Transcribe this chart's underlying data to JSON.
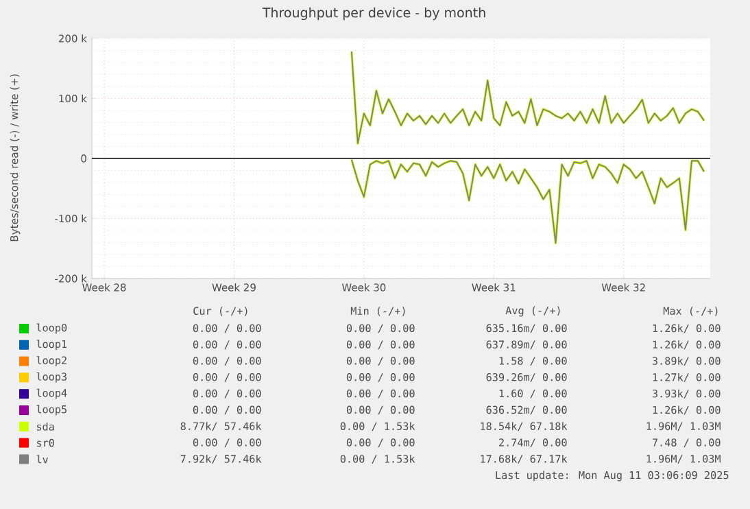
{
  "chart_data": {
    "type": "line",
    "title": "Throughput per device - by month",
    "ylabel": "Bytes/second read (-) / write (+)",
    "categories": [
      null,
      null,
      "Week 28",
      null,
      null,
      null,
      null,
      null,
      null,
      null,
      null,
      null,
      null,
      null,
      null,
      null,
      null,
      null,
      null,
      null,
      null,
      null,
      null,
      "Week 29",
      null,
      null,
      null,
      null,
      null,
      null,
      null,
      null,
      null,
      null,
      null,
      null,
      null,
      null,
      null,
      null,
      null,
      null,
      null,
      null,
      "Week 30",
      null,
      null,
      null,
      null,
      null,
      null,
      null,
      null,
      null,
      null,
      null,
      null,
      null,
      null,
      null,
      null,
      null,
      null,
      null,
      null,
      "Week 31",
      null,
      null,
      null,
      null,
      null,
      null,
      null,
      null,
      null,
      null,
      null,
      null,
      null,
      null,
      null,
      null,
      null,
      null,
      null,
      null,
      "Week 32",
      null,
      null,
      null,
      null,
      null,
      null,
      null,
      null,
      null,
      null,
      null,
      null,
      null,
      null
    ],
    "ylim": [
      -200000,
      200000
    ],
    "yticks": [
      {
        "value": -200000,
        "label": "-200 k"
      },
      {
        "value": -100000,
        "label": "-100 k"
      },
      0,
      {
        "value": 100000,
        "label": "100 k"
      },
      {
        "value": 200000,
        "label": "200 k"
      }
    ],
    "grid": true,
    "legend": "bottom",
    "marker": "none",
    "line_style": "solid",
    "ref_lines": [
      {
        "axis": "y",
        "value": 0,
        "color": "#000000"
      }
    ],
    "series": [
      {
        "name": "loop0",
        "color": "#00cc00",
        "values": [
          null,
          null,
          null,
          null,
          null,
          null,
          null,
          null,
          null,
          null,
          null,
          null,
          null,
          null,
          null,
          null,
          null,
          null,
          null,
          null,
          null,
          null,
          null,
          null,
          null,
          null,
          null,
          null,
          null,
          null,
          null,
          null,
          null,
          null,
          null,
          null,
          null,
          null,
          null,
          null,
          null,
          null,
          null,
          null,
          null,
          null,
          null,
          null,
          null,
          null,
          null,
          null,
          null,
          null,
          null,
          null,
          null,
          null,
          null,
          null,
          null,
          null,
          null,
          null,
          null,
          null,
          null,
          null,
          null,
          null,
          null,
          null,
          null,
          null,
          null,
          null,
          null,
          null,
          null,
          null,
          null,
          null,
          null,
          null,
          null,
          null,
          null,
          null,
          null,
          null,
          null,
          null,
          null,
          null,
          null,
          null,
          null,
          null,
          null,
          null,
          null
        ]
      },
      {
        "name": "loop1",
        "color": "#0066b3",
        "values": [
          null,
          null,
          null,
          null,
          null,
          null,
          null,
          null,
          null,
          null,
          null,
          null,
          null,
          null,
          null,
          null,
          null,
          null,
          null,
          null,
          null,
          null,
          null,
          null,
          null,
          null,
          null,
          null,
          null,
          null,
          null,
          null,
          null,
          null,
          null,
          null,
          null,
          null,
          null,
          null,
          null,
          null,
          null,
          null,
          null,
          null,
          null,
          null,
          null,
          null,
          null,
          null,
          null,
          null,
          null,
          null,
          null,
          null,
          null,
          null,
          null,
          null,
          null,
          null,
          null,
          null,
          null,
          null,
          null,
          null,
          null,
          null,
          null,
          null,
          null,
          null,
          null,
          null,
          null,
          null,
          null,
          null,
          null,
          null,
          null,
          null,
          null,
          null,
          null,
          null,
          null,
          null,
          null,
          null,
          null,
          null,
          null,
          null,
          null,
          null,
          null
        ]
      },
      {
        "name": "loop2",
        "color": "#ff8000",
        "values": [
          null,
          null,
          null,
          null,
          null,
          null,
          null,
          null,
          null,
          null,
          null,
          null,
          null,
          null,
          null,
          null,
          null,
          null,
          null,
          null,
          null,
          null,
          null,
          null,
          null,
          null,
          null,
          null,
          null,
          null,
          null,
          null,
          null,
          null,
          null,
          null,
          null,
          null,
          null,
          null,
          null,
          null,
          null,
          null,
          null,
          null,
          null,
          null,
          null,
          null,
          null,
          null,
          null,
          null,
          null,
          null,
          null,
          null,
          null,
          null,
          null,
          null,
          null,
          null,
          null,
          null,
          null,
          null,
          null,
          null,
          null,
          null,
          null,
          null,
          null,
          null,
          null,
          null,
          null,
          null,
          null,
          null,
          null,
          null,
          null,
          null,
          null,
          null,
          null,
          null,
          null,
          null,
          null,
          null,
          null,
          null,
          null,
          null,
          null,
          null,
          null
        ]
      },
      {
        "name": "loop3",
        "color": "#ffcc00",
        "values": [
          null,
          null,
          null,
          null,
          null,
          null,
          null,
          null,
          null,
          null,
          null,
          null,
          null,
          null,
          null,
          null,
          null,
          null,
          null,
          null,
          null,
          null,
          null,
          null,
          null,
          null,
          null,
          null,
          null,
          null,
          null,
          null,
          null,
          null,
          null,
          null,
          null,
          null,
          null,
          null,
          null,
          null,
          null,
          null,
          null,
          null,
          null,
          null,
          null,
          null,
          null,
          null,
          null,
          null,
          null,
          null,
          null,
          null,
          null,
          null,
          null,
          null,
          null,
          null,
          null,
          null,
          null,
          null,
          null,
          null,
          null,
          null,
          null,
          null,
          null,
          null,
          null,
          null,
          null,
          null,
          null,
          null,
          null,
          null,
          null,
          null,
          null,
          null,
          null,
          null,
          null,
          null,
          null,
          null,
          null,
          null,
          null,
          null,
          null,
          null,
          null
        ]
      },
      {
        "name": "loop4",
        "color": "#330099",
        "values": [
          null,
          null,
          null,
          null,
          null,
          null,
          null,
          null,
          null,
          null,
          null,
          null,
          null,
          null,
          null,
          null,
          null,
          null,
          null,
          null,
          null,
          null,
          null,
          null,
          null,
          null,
          null,
          null,
          null,
          null,
          null,
          null,
          null,
          null,
          null,
          null,
          null,
          null,
          null,
          null,
          null,
          null,
          null,
          null,
          null,
          null,
          null,
          null,
          null,
          null,
          null,
          null,
          null,
          null,
          null,
          null,
          null,
          null,
          null,
          null,
          null,
          null,
          null,
          null,
          null,
          null,
          null,
          null,
          null,
          null,
          null,
          null,
          null,
          null,
          null,
          null,
          null,
          null,
          null,
          null,
          null,
          null,
          null,
          null,
          null,
          null,
          null,
          null,
          null,
          null,
          null,
          null,
          null,
          null,
          null,
          null,
          null,
          null,
          null,
          null,
          null
        ]
      },
      {
        "name": "loop5",
        "color": "#990099",
        "values": [
          null,
          null,
          null,
          null,
          null,
          null,
          null,
          null,
          null,
          null,
          null,
          null,
          null,
          null,
          null,
          null,
          null,
          null,
          null,
          null,
          null,
          null,
          null,
          null,
          null,
          null,
          null,
          null,
          null,
          null,
          null,
          null,
          null,
          null,
          null,
          null,
          null,
          null,
          null,
          null,
          null,
          null,
          null,
          null,
          null,
          null,
          null,
          null,
          null,
          null,
          null,
          null,
          null,
          null,
          null,
          null,
          null,
          null,
          null,
          null,
          null,
          null,
          null,
          null,
          null,
          null,
          null,
          null,
          null,
          null,
          null,
          null,
          null,
          null,
          null,
          null,
          null,
          null,
          null,
          null,
          null,
          null,
          null,
          null,
          null,
          null,
          null,
          null,
          null,
          null,
          null,
          null,
          null,
          null,
          null,
          null,
          null,
          null,
          null,
          null,
          null
        ]
      },
      {
        "name": "sda",
        "color": "#ccff00",
        "values": [
          null,
          null,
          null,
          null,
          null,
          null,
          null,
          null,
          null,
          null,
          null,
          null,
          null,
          null,
          null,
          null,
          null,
          null,
          null,
          null,
          null,
          null,
          null,
          null,
          null,
          null,
          null,
          null,
          null,
          null,
          null,
          null,
          null,
          null,
          null,
          null,
          null,
          null,
          null,
          null,
          null,
          null,
          178000,
          25000,
          75000,
          55000,
          113000,
          75000,
          99000,
          78000,
          55000,
          75000,
          63000,
          71000,
          57000,
          71000,
          59000,
          75000,
          59000,
          71000,
          82000,
          55000,
          78000,
          63000,
          130000,
          67000,
          55000,
          94000,
          71000,
          78000,
          59000,
          99000,
          55000,
          82000,
          78000,
          71000,
          67000,
          75000,
          63000,
          78000,
          59000,
          82000,
          59000,
          104000,
          59000,
          75000,
          59000,
          71000,
          82000,
          98000,
          59000,
          75000,
          63000,
          71000,
          84000,
          59000,
          75000,
          82000,
          78000,
          63000,
          null
        ]
      },
      {
        "color": "#ccff00",
        "values": [
          null,
          null,
          null,
          null,
          null,
          null,
          null,
          null,
          null,
          null,
          null,
          null,
          null,
          null,
          null,
          null,
          null,
          null,
          null,
          null,
          null,
          null,
          null,
          null,
          null,
          null,
          null,
          null,
          null,
          null,
          null,
          null,
          null,
          null,
          null,
          null,
          null,
          null,
          null,
          null,
          null,
          null,
          -2000,
          -37000,
          -64000,
          -10000,
          -4000,
          -8000,
          -4000,
          -33000,
          -10000,
          -22000,
          -8000,
          -10000,
          -29000,
          -6000,
          -14000,
          -8000,
          -4000,
          -6000,
          -25000,
          -70000,
          -10000,
          -29000,
          -14000,
          -33000,
          -10000,
          -37000,
          -22000,
          -42000,
          -18000,
          -33000,
          -48000,
          -68000,
          -52000,
          -141000,
          -10000,
          -29000,
          -6000,
          -8000,
          -4000,
          -33000,
          -10000,
          -14000,
          -25000,
          -41000,
          -10000,
          -18000,
          -33000,
          -22000,
          -48000,
          -75000,
          -33000,
          -48000,
          -41000,
          -33000,
          -119000,
          -4000,
          -4000,
          -22000,
          null
        ]
      },
      {
        "name": "sr0",
        "color": "#ff0000",
        "values": [
          null,
          null,
          null,
          null,
          null,
          null,
          null,
          null,
          null,
          null,
          null,
          null,
          null,
          null,
          null,
          null,
          null,
          null,
          null,
          null,
          null,
          null,
          null,
          null,
          null,
          null,
          null,
          null,
          null,
          null,
          null,
          null,
          null,
          null,
          null,
          null,
          null,
          null,
          null,
          null,
          null,
          null,
          null,
          null,
          null,
          null,
          null,
          null,
          null,
          null,
          null,
          null,
          null,
          null,
          null,
          null,
          null,
          null,
          null,
          null,
          null,
          null,
          null,
          null,
          null,
          null,
          null,
          null,
          null,
          null,
          null,
          null,
          null,
          null,
          null,
          null,
          null,
          null,
          null,
          null,
          null,
          null,
          null,
          null,
          null,
          null,
          null,
          null,
          null,
          null,
          null,
          null,
          null,
          null,
          null,
          null,
          null,
          null,
          null,
          null,
          null
        ]
      },
      {
        "name": "lv",
        "color": "#808080",
        "values": [
          null,
          null,
          null,
          null,
          null,
          null,
          null,
          null,
          null,
          null,
          null,
          null,
          null,
          null,
          null,
          null,
          null,
          null,
          null,
          null,
          null,
          null,
          null,
          null,
          null,
          null,
          null,
          null,
          null,
          null,
          null,
          null,
          null,
          null,
          null,
          null,
          null,
          null,
          null,
          null,
          null,
          null,
          178000,
          25000,
          75000,
          55000,
          113000,
          75000,
          99000,
          78000,
          55000,
          75000,
          63000,
          71000,
          57000,
          71000,
          59000,
          75000,
          59000,
          71000,
          82000,
          55000,
          78000,
          63000,
          130000,
          67000,
          55000,
          94000,
          71000,
          78000,
          59000,
          99000,
          55000,
          82000,
          78000,
          71000,
          67000,
          75000,
          63000,
          78000,
          59000,
          82000,
          59000,
          104000,
          59000,
          75000,
          59000,
          71000,
          82000,
          98000,
          59000,
          75000,
          63000,
          71000,
          84000,
          59000,
          75000,
          82000,
          78000,
          63000,
          null
        ]
      },
      {
        "color": "#808080",
        "values": [
          null,
          null,
          null,
          null,
          null,
          null,
          null,
          null,
          null,
          null,
          null,
          null,
          null,
          null,
          null,
          null,
          null,
          null,
          null,
          null,
          null,
          null,
          null,
          null,
          null,
          null,
          null,
          null,
          null,
          null,
          null,
          null,
          null,
          null,
          null,
          null,
          null,
          null,
          null,
          null,
          null,
          null,
          -2000,
          -37000,
          -64000,
          -10000,
          -4000,
          -8000,
          -4000,
          -33000,
          -10000,
          -22000,
          -8000,
          -10000,
          -29000,
          -6000,
          -14000,
          -8000,
          -4000,
          -6000,
          -25000,
          -70000,
          -10000,
          -29000,
          -14000,
          -33000,
          -10000,
          -37000,
          -22000,
          -42000,
          -18000,
          -33000,
          -48000,
          -68000,
          -52000,
          -141000,
          -10000,
          -29000,
          -6000,
          -8000,
          -4000,
          -33000,
          -10000,
          -14000,
          -25000,
          -41000,
          -10000,
          -18000,
          -33000,
          -22000,
          -48000,
          -75000,
          -33000,
          -48000,
          -41000,
          -33000,
          -119000,
          -4000,
          -4000,
          -22000,
          null
        ]
      }
    ],
    "annotations": [
      "Cur (-/+)",
      "Min (-/+)",
      "Avg (-/+)",
      "Max (-/+)",
      "0.00 / 0.00",
      "0.00 / 0.00",
      "635.16m/ 0.00",
      "1.26k/ 0.00",
      "0.00 / 0.00",
      "0.00 / 0.00",
      "637.89m/ 0.00",
      "1.26k/ 0.00",
      "0.00 / 0.00",
      "0.00 / 0.00",
      "1.58 / 0.00",
      "3.89k/ 0.00",
      "0.00 / 0.00",
      "0.00 / 0.00",
      "639.26m/ 0.00",
      "1.27k/ 0.00",
      "0.00 / 0.00",
      "0.00 / 0.00",
      "1.60 / 0.00",
      "3.93k/ 0.00",
      "0.00 / 0.00",
      "0.00 / 0.00",
      "636.52m/ 0.00",
      "1.26k/ 0.00",
      "8.77k/ 57.46k",
      "0.00 / 1.53k",
      "18.54k/ 67.18k",
      "1.96M/ 1.03M",
      "0.00 / 0.00",
      "0.00 / 0.00",
      "2.74m/ 0.00",
      "7.48 / 0.00",
      "7.92k/ 57.46k",
      "0.00 / 1.53k",
      "17.68k/ 67.17k",
      "1.96M/ 1.03M",
      "Last update: Mon Aug 11 03:06:09 2025"
    ]
  }
}
